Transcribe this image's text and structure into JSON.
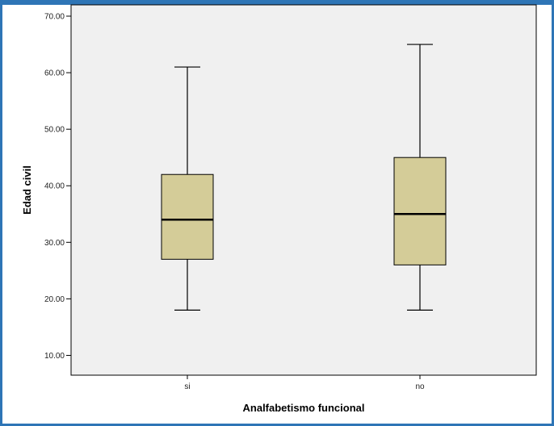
{
  "chart_data": {
    "type": "boxplot",
    "xlabel": "Analfabetismo funcional",
    "ylabel": "Edad civil",
    "ylim": [
      6.5,
      72
    ],
    "yticks": [
      "10.00",
      "20.00",
      "30.00",
      "40.00",
      "50.00",
      "60.00",
      "70.00"
    ],
    "categories": [
      "si",
      "no"
    ],
    "boxes": [
      {
        "category": "si",
        "whisker_low": 18,
        "q1": 27,
        "median": 34,
        "q3": 42,
        "whisker_high": 61
      },
      {
        "category": "no",
        "whisker_low": 18,
        "q1": 26,
        "median": 35,
        "q3": 45,
        "whisker_high": 65
      }
    ],
    "box_fill": "#d4cc98",
    "plot_background": "#f0f0f0",
    "grid": false
  }
}
